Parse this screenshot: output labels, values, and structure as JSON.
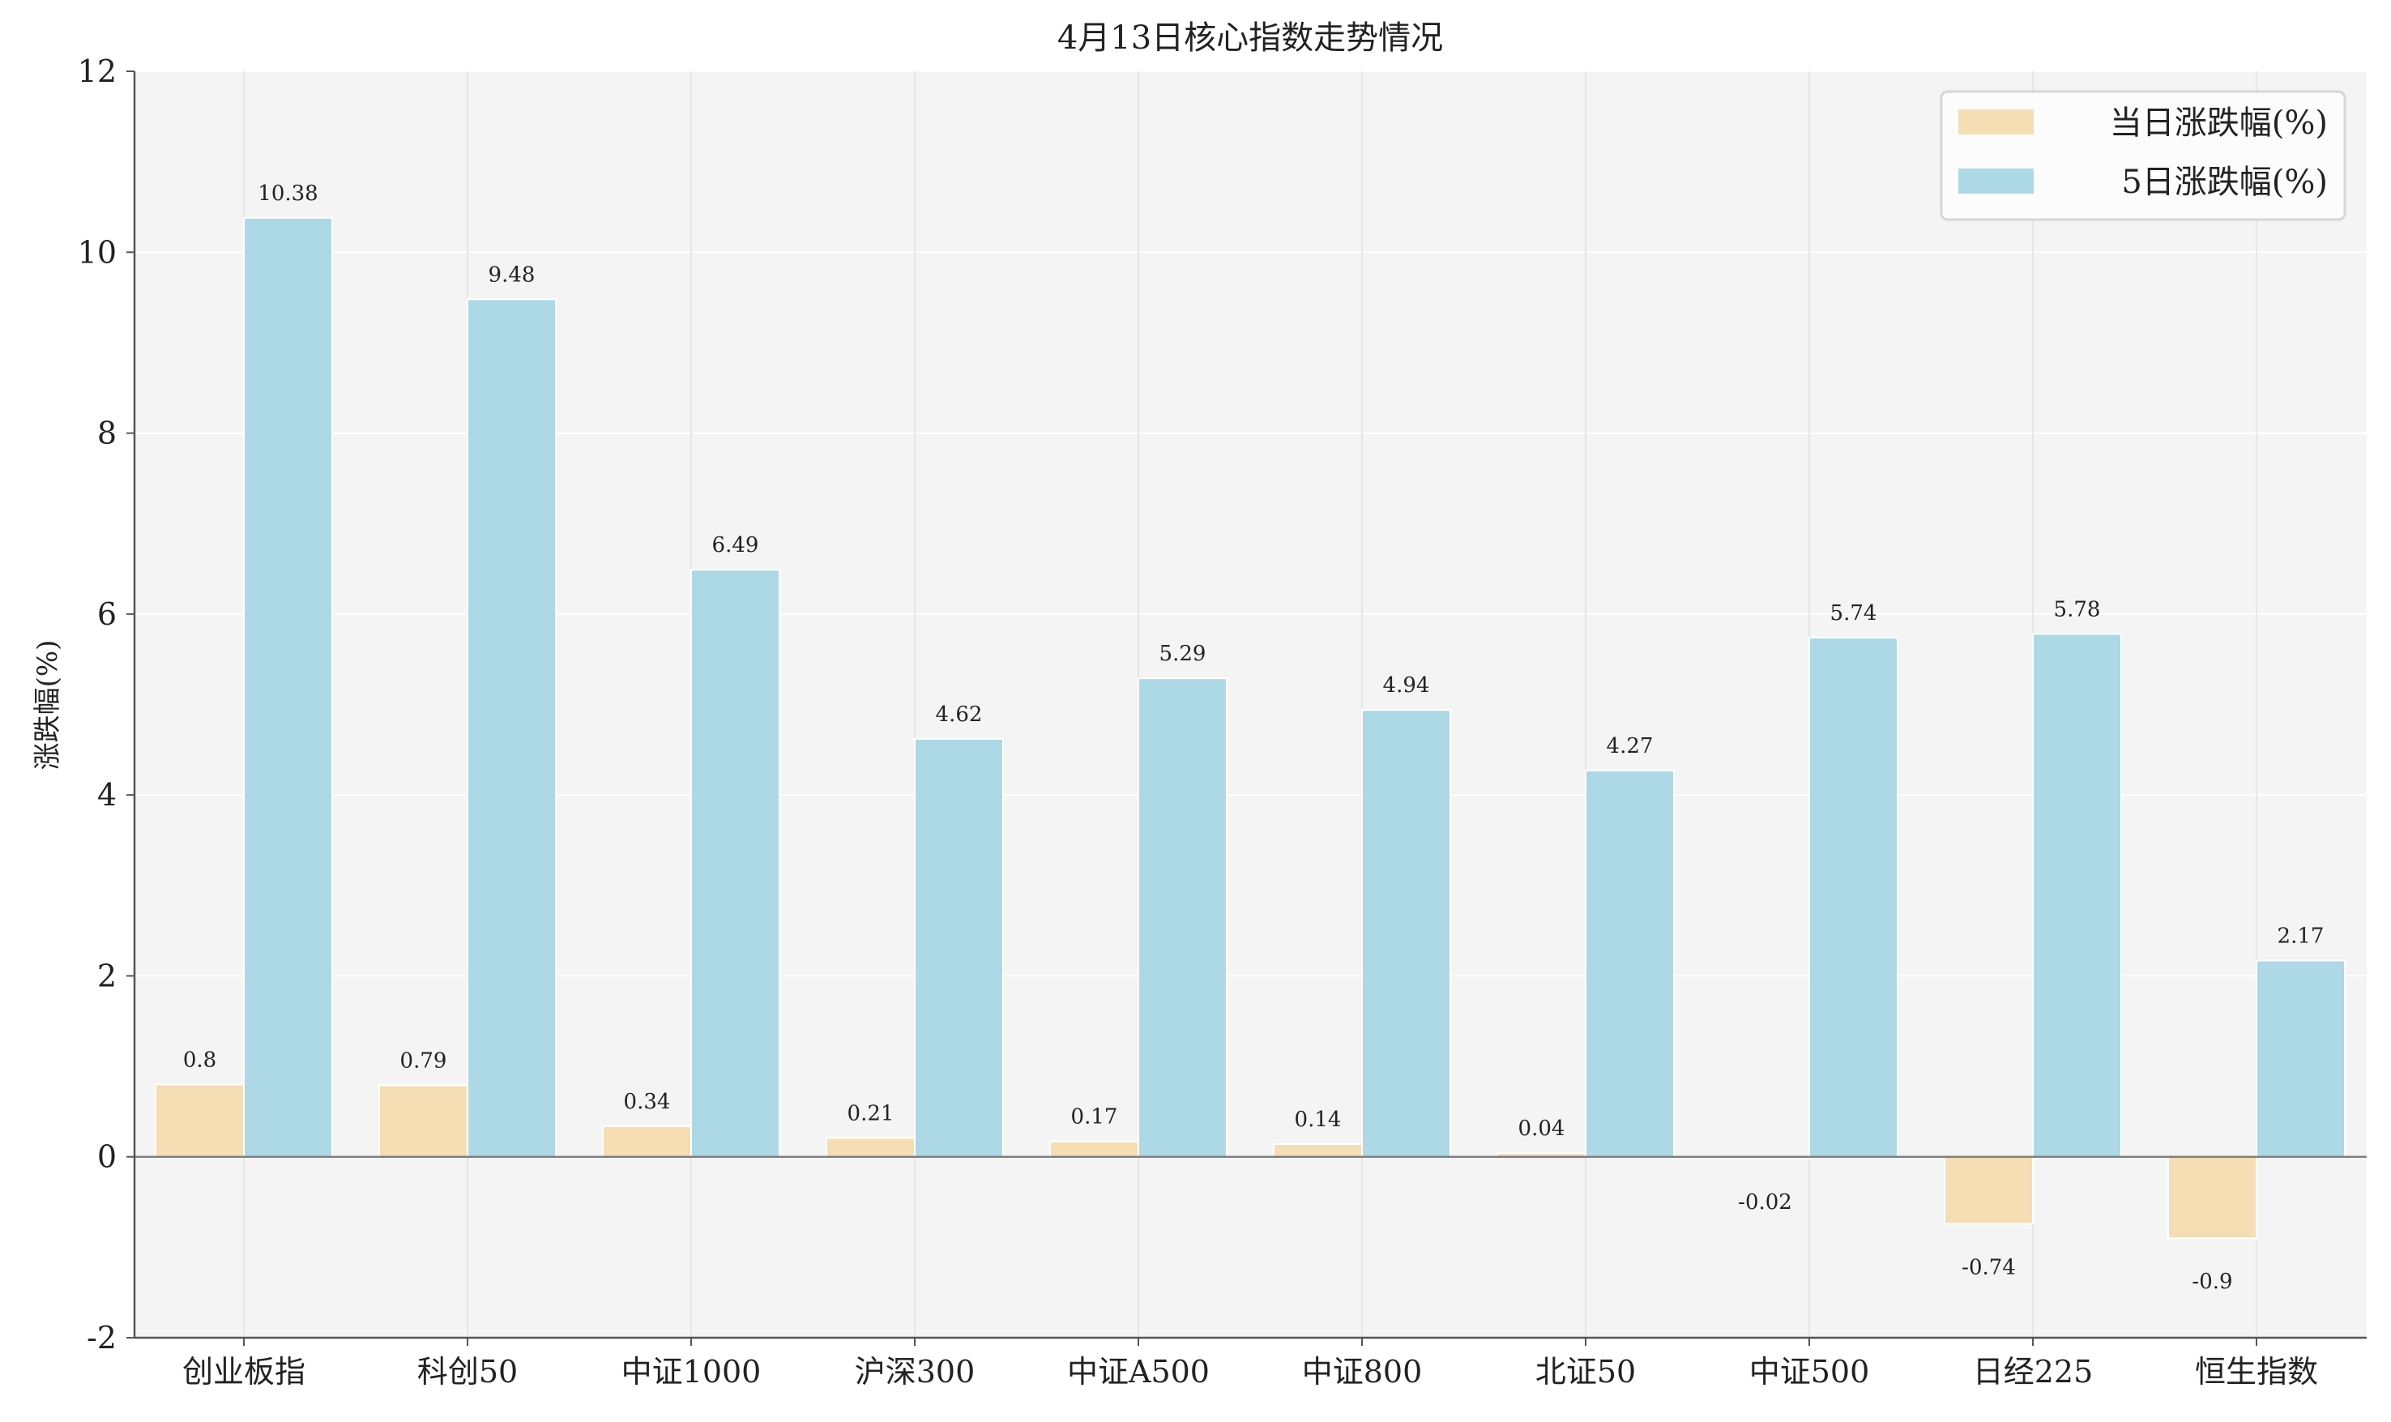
{
  "chart_data": {
    "type": "bar",
    "title": "4月13日核心指数走势情况",
    "xlabel": "",
    "ylabel": "涨跌幅(%)",
    "ylim": [
      -2,
      12
    ],
    "yticks": [
      -2,
      0,
      2,
      4,
      6,
      8,
      10,
      12
    ],
    "grid": true,
    "legend_position": "top-right",
    "categories": [
      "创业板指",
      "科创50",
      "中证1000",
      "沪深300",
      "中证A500",
      "中证800",
      "北证50",
      "中证500",
      "日经225",
      "恒生指数"
    ],
    "series": [
      {
        "name": "当日涨跌幅(%)",
        "color": "#f5deb3",
        "values": [
          0.8,
          0.79,
          0.34,
          0.21,
          0.17,
          0.14,
          0.04,
          -0.02,
          -0.74,
          -0.9
        ]
      },
      {
        "name": "5日涨跌幅(%)",
        "color": "#add8e6",
        "values": [
          10.38,
          9.48,
          6.49,
          4.62,
          5.29,
          4.94,
          4.27,
          5.74,
          5.78,
          2.17
        ]
      }
    ]
  }
}
